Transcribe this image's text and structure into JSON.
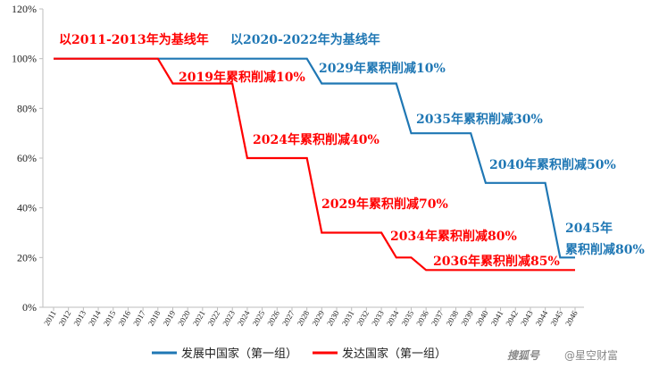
{
  "chart_data": {
    "type": "line",
    "title": "",
    "xlabel": "",
    "ylabel": "",
    "ylim": [
      0,
      120
    ],
    "yticks": [
      "0%",
      "20%",
      "40%",
      "60%",
      "80%",
      "100%",
      "120%"
    ],
    "x": [
      "2011",
      "2012",
      "2013",
      "2014",
      "2015",
      "2016",
      "2017",
      "2018",
      "2019",
      "2020",
      "2021",
      "2022",
      "2023",
      "2024",
      "2025",
      "2026",
      "2027",
      "2028",
      "2029",
      "2030",
      "2031",
      "2032",
      "2033",
      "2034",
      "2035",
      "2036",
      "2037",
      "2038",
      "2039",
      "2040",
      "2041",
      "2042",
      "2043",
      "2044",
      "2045",
      "2046"
    ],
    "grid": false,
    "legend_position": "bottom",
    "series": [
      {
        "name": "发展中国家（第一组）",
        "color": "#1f77b4",
        "values": [
          100,
          100,
          100,
          100,
          100,
          100,
          100,
          100,
          100,
          100,
          100,
          100,
          100,
          100,
          100,
          100,
          100,
          100,
          90,
          90,
          90,
          90,
          90,
          90,
          70,
          70,
          70,
          70,
          70,
          50,
          50,
          50,
          50,
          50,
          20,
          20
        ]
      },
      {
        "name": "发达国家（第一组）",
        "color": "#ff0000",
        "values": [
          100,
          100,
          100,
          100,
          100,
          100,
          100,
          100,
          90,
          90,
          90,
          90,
          90,
          60,
          60,
          60,
          60,
          60,
          30,
          30,
          30,
          30,
          30,
          20,
          20,
          15,
          15,
          15,
          15,
          15,
          15,
          15,
          15,
          15,
          15,
          15
        ]
      }
    ],
    "annotations": [
      {
        "text": "以2011-2013年为基线年",
        "color": "#ff0000"
      },
      {
        "text": "以2020-2022年为基线年",
        "color": "#1f77b4"
      },
      {
        "text": "2019年累积削减10%",
        "color": "#ff0000"
      },
      {
        "text": "2024年累积削减40%",
        "color": "#ff0000"
      },
      {
        "text": "2029年累积削减70%",
        "color": "#ff0000"
      },
      {
        "text": "2034年累积削减80%",
        "color": "#ff0000"
      },
      {
        "text": "2036年累积削减85%",
        "color": "#ff0000"
      },
      {
        "text": "2029年累积削减10%",
        "color": "#1f77b4"
      },
      {
        "text": "2035年累积削减30%",
        "color": "#1f77b4"
      },
      {
        "text": "2040年累积削减50%",
        "color": "#1f77b4"
      },
      {
        "text": "2045年",
        "color": "#1f77b4"
      },
      {
        "text": "累积削减80%",
        "color": "#1f77b4"
      }
    ]
  },
  "watermark": {
    "logo_text": "搜狐号",
    "account": "@星空财富"
  }
}
